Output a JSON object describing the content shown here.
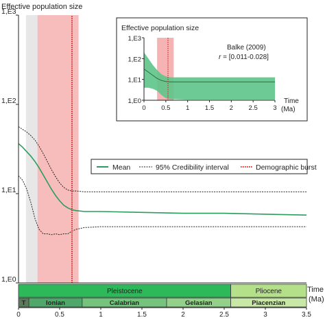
{
  "chart_data": [
    {
      "type": "line",
      "title": "",
      "ylabel": "Effective population size",
      "xlabel": "Time (Ma)",
      "xlabel_lines": [
        "Time",
        "(Ma)"
      ],
      "xlim": [
        0,
        3.5
      ],
      "ylim": [
        0,
        3
      ],
      "y_scale": "log10",
      "x_ticks": [
        0,
        0.5,
        1,
        1.5,
        2,
        2.5,
        3,
        3.5
      ],
      "x_tick_labels": [
        "0",
        "0.5",
        "1",
        "1.5",
        "2",
        "2.5",
        "3",
        "3.5"
      ],
      "y_ticks": [
        0,
        1,
        2,
        3
      ],
      "y_tick_labels": [
        "1,E0",
        "1,E1",
        "1,E2",
        "1,E3"
      ],
      "grid": false,
      "legend_position": "middle-right",
      "shaded_regions": [
        {
          "type": "demographic-burst-credibility",
          "x_range": [
            0.23,
            0.73
          ],
          "color": "#f4a6a6"
        },
        {
          "type": "background-band",
          "x_range": [
            0.09,
            0.23
          ],
          "color": "#e4e4e4"
        }
      ],
      "series": [
        {
          "name": "Mean",
          "style": "solid",
          "color": "#2a9d5c",
          "x": [
            0,
            0.05,
            0.1,
            0.15,
            0.2,
            0.25,
            0.3,
            0.35,
            0.4,
            0.45,
            0.5,
            0.55,
            0.6,
            0.65,
            0.7,
            0.8,
            1.0,
            1.5,
            2.0,
            2.5,
            3.0,
            3.5
          ],
          "y": [
            1.56,
            1.52,
            1.47,
            1.42,
            1.36,
            1.29,
            1.21,
            1.13,
            1.05,
            0.98,
            0.92,
            0.87,
            0.84,
            0.82,
            0.81,
            0.8,
            0.8,
            0.79,
            0.78,
            0.78,
            0.77,
            0.76
          ]
        },
        {
          "name": "95% Credibility interval",
          "style": "dashed",
          "color": "#222222",
          "x": [
            0,
            0.05,
            0.1,
            0.15,
            0.2,
            0.25,
            0.3,
            0.35,
            0.4,
            0.45,
            0.5,
            0.55,
            0.6,
            0.65,
            0.7,
            0.8,
            1.0,
            1.5,
            2.0,
            2.5,
            3.0,
            3.5
          ],
          "y": [
            1.75,
            1.72,
            1.69,
            1.65,
            1.6,
            1.53,
            1.45,
            1.36,
            1.27,
            1.19,
            1.12,
            1.07,
            1.04,
            1.03,
            1.03,
            1.02,
            1.02,
            1.02,
            1.02,
            1.02,
            1.02,
            1.02
          ]
        },
        {
          "name": "95% Credibility interval (lower)",
          "style": "dashed",
          "color": "#222222",
          "x": [
            0,
            0.05,
            0.1,
            0.15,
            0.2,
            0.25,
            0.3,
            0.35,
            0.4,
            0.45,
            0.5,
            0.55,
            0.6,
            0.65,
            0.7,
            0.8,
            1.0,
            1.5,
            2.0,
            2.5,
            3.0,
            3.5
          ],
          "y": [
            1.2,
            1.15,
            1.05,
            0.9,
            0.72,
            0.6,
            0.55,
            0.55,
            0.54,
            0.55,
            0.54,
            0.55,
            0.55,
            0.58,
            0.6,
            0.62,
            0.63,
            0.63,
            0.63,
            0.63,
            0.63,
            0.63
          ]
        },
        {
          "name": "Demographic burst",
          "style": "dotted",
          "color": "#d62828",
          "x": [
            0.65,
            0.65
          ],
          "y": [
            0,
            3
          ]
        }
      ],
      "legend": {
        "mean": "Mean",
        "ci": "95% Credibility interval",
        "burst": "Demographic burst"
      },
      "timescale": {
        "epochs": [
          {
            "name": "Pleistocene",
            "start": 0,
            "end": 2.58,
            "color": "#2db85a"
          },
          {
            "name": "Pliocene",
            "start": 2.58,
            "end": 3.5,
            "color": "#b5e08a"
          }
        ],
        "ages": [
          {
            "name": "T",
            "start": 0,
            "end": 0.126,
            "color": "#5a7a5a"
          },
          {
            "name": "Ionian",
            "start": 0.126,
            "end": 0.774,
            "color": "#4fa86a"
          },
          {
            "name": "Calabrian",
            "start": 0.774,
            "end": 1.8,
            "color": "#75c47e"
          },
          {
            "name": "Gelasian",
            "start": 1.8,
            "end": 2.58,
            "color": "#93d18a"
          },
          {
            "name": "Piacenzian",
            "start": 2.58,
            "end": 3.5,
            "color": "#c8e8a8"
          }
        ]
      }
    },
    {
      "type": "area",
      "title": "Effective population size",
      "annotation_line1": "Balke (2009)",
      "annotation_r": "r",
      "annotation_range": " = [0.011-0.028]",
      "xlabel": "Time (Ma)",
      "xlabel_lines": [
        "Time",
        "(Ma)"
      ],
      "xlim": [
        0,
        3
      ],
      "ylim": [
        0,
        3
      ],
      "y_scale": "log10",
      "x_ticks": [
        0,
        0.5,
        1,
        1.5,
        2,
        2.5,
        3
      ],
      "x_tick_labels": [
        "0",
        "0.5",
        "1",
        "1.5",
        "2",
        "2.5",
        "3"
      ],
      "y_ticks": [
        0,
        1,
        2,
        3
      ],
      "y_tick_labels": [
        "1,E0",
        "1,E1",
        "1,E2",
        "1,E3"
      ],
      "shaded_regions": [
        {
          "x_range": [
            0.3,
            0.68
          ],
          "color": "#f4a6a6"
        }
      ],
      "burst_x": 0.55,
      "band": {
        "color": "#5ec488",
        "x": [
          0,
          0.1,
          0.2,
          0.3,
          0.4,
          0.5,
          0.6,
          0.7,
          1.0,
          1.5,
          2.0,
          2.5,
          3.0
        ],
        "upper": [
          2.3,
          2.0,
          1.7,
          1.45,
          1.25,
          1.15,
          1.1,
          1.1,
          1.1,
          1.1,
          1.1,
          1.1,
          1.1
        ],
        "lower": [
          0.6,
          0.6,
          0.55,
          0.45,
          0.25,
          0.1,
          0.05,
          0.05,
          0.03,
          0.03,
          0.03,
          0.03,
          0.03
        ]
      },
      "mean": {
        "color": "#2d6a3f",
        "x": [
          0,
          0.1,
          0.2,
          0.3,
          0.4,
          0.5,
          0.6,
          0.7,
          1.0,
          1.5,
          2.0,
          2.5,
          3.0
        ],
        "y": [
          1.5,
          1.35,
          1.2,
          1.05,
          0.95,
          0.9,
          0.88,
          0.88,
          0.88,
          0.88,
          0.88,
          0.88,
          0.88
        ]
      }
    }
  ]
}
